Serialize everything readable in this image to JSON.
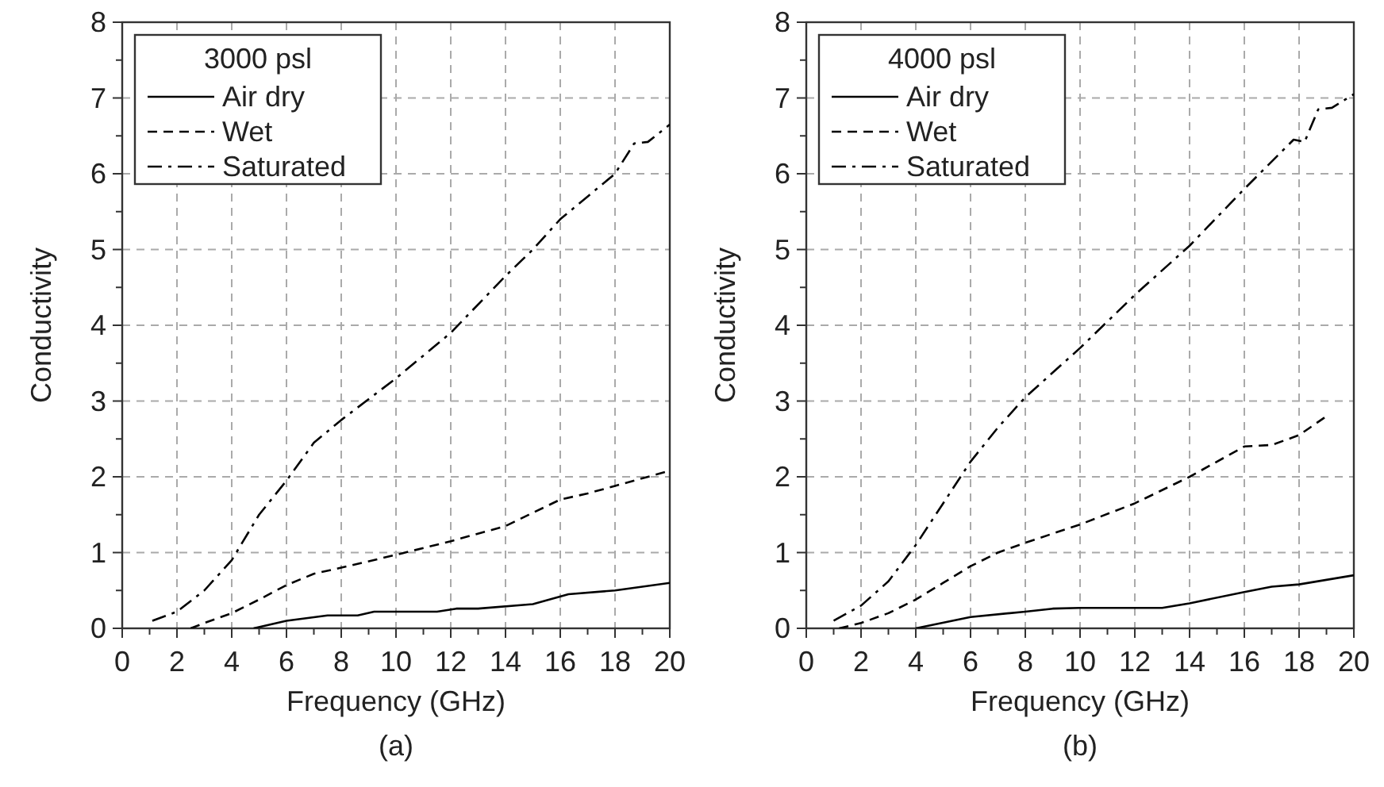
{
  "chart_data": [
    {
      "type": "line",
      "xlabel": "Frequency (GHz)",
      "ylabel": "Conductivity",
      "legend_title": "3000 psl",
      "annotations": [
        "(a)"
      ],
      "xlim": [
        0,
        20
      ],
      "ylim": [
        0,
        8
      ],
      "xticks": [
        0,
        2,
        4,
        6,
        8,
        10,
        12,
        14,
        16,
        18,
        20
      ],
      "yticks": [
        0,
        1,
        2,
        3,
        4,
        5,
        6,
        7,
        8
      ],
      "grid": true,
      "legend": "top left",
      "series": [
        {
          "name": "Air dry",
          "color": "#000000",
          "line_style": "solid",
          "x": [
            4.8,
            6,
            7.5,
            8.6,
            9.2,
            11.5,
            12.2,
            13,
            15,
            16.3,
            18,
            20
          ],
          "values": [
            0,
            0.1,
            0.17,
            0.17,
            0.22,
            0.22,
            0.26,
            0.26,
            0.32,
            0.45,
            0.5,
            0.6
          ]
        },
        {
          "name": "Wet",
          "color": "#000000",
          "line_style": "dashed",
          "x": [
            2.5,
            3,
            4,
            5,
            6,
            7,
            8,
            10,
            12,
            14,
            16,
            17,
            18,
            20
          ],
          "values": [
            0,
            0.07,
            0.2,
            0.38,
            0.57,
            0.72,
            0.8,
            0.97,
            1.15,
            1.35,
            1.7,
            1.78,
            1.88,
            2.08
          ]
        },
        {
          "name": "Saturated",
          "color": "#000000",
          "line_style": "dashdot",
          "x": [
            1.1,
            2,
            3,
            4,
            5,
            6,
            7,
            8,
            10,
            12,
            14,
            15,
            16,
            17,
            18,
            18.7,
            19.2,
            20
          ],
          "values": [
            0.1,
            0.22,
            0.5,
            0.9,
            1.5,
            1.95,
            2.45,
            2.75,
            3.3,
            3.9,
            4.65,
            5.0,
            5.4,
            5.7,
            6.0,
            6.4,
            6.42,
            6.65
          ]
        }
      ]
    },
    {
      "type": "line",
      "xlabel": "Frequency (GHz)",
      "ylabel": "Conductivity",
      "legend_title": "4000 psl",
      "annotations": [
        "(b)"
      ],
      "xlim": [
        0,
        20
      ],
      "ylim": [
        0,
        8
      ],
      "xticks": [
        0,
        2,
        4,
        6,
        8,
        10,
        12,
        14,
        16,
        18,
        20
      ],
      "yticks": [
        0,
        1,
        2,
        3,
        4,
        5,
        6,
        7,
        8
      ],
      "grid": true,
      "legend": "top left",
      "series": [
        {
          "name": "Air dry",
          "color": "#000000",
          "line_style": "solid",
          "x": [
            4,
            6,
            8,
            9,
            10,
            13,
            14,
            16,
            17,
            18,
            20
          ],
          "values": [
            0,
            0.15,
            0.22,
            0.26,
            0.27,
            0.27,
            0.33,
            0.48,
            0.55,
            0.58,
            0.7
          ]
        },
        {
          "name": "Wet",
          "color": "#000000",
          "line_style": "dashed",
          "x": [
            1.2,
            2,
            3,
            4,
            5,
            6,
            7,
            8,
            10,
            12,
            14,
            16,
            17,
            18,
            19
          ],
          "values": [
            0,
            0.07,
            0.2,
            0.38,
            0.6,
            0.82,
            1.0,
            1.13,
            1.37,
            1.65,
            2.0,
            2.4,
            2.42,
            2.55,
            2.8
          ]
        },
        {
          "name": "Saturated",
          "color": "#000000",
          "line_style": "dashdot",
          "x": [
            1,
            2,
            3,
            4,
            5,
            6,
            7,
            8,
            10,
            12,
            14,
            16,
            17.8,
            18.2,
            18.7,
            19.2,
            20
          ],
          "values": [
            0.1,
            0.3,
            0.62,
            1.1,
            1.65,
            2.2,
            2.65,
            3.05,
            3.7,
            4.4,
            5.05,
            5.8,
            6.45,
            6.42,
            6.85,
            6.87,
            7.05
          ]
        }
      ]
    }
  ]
}
